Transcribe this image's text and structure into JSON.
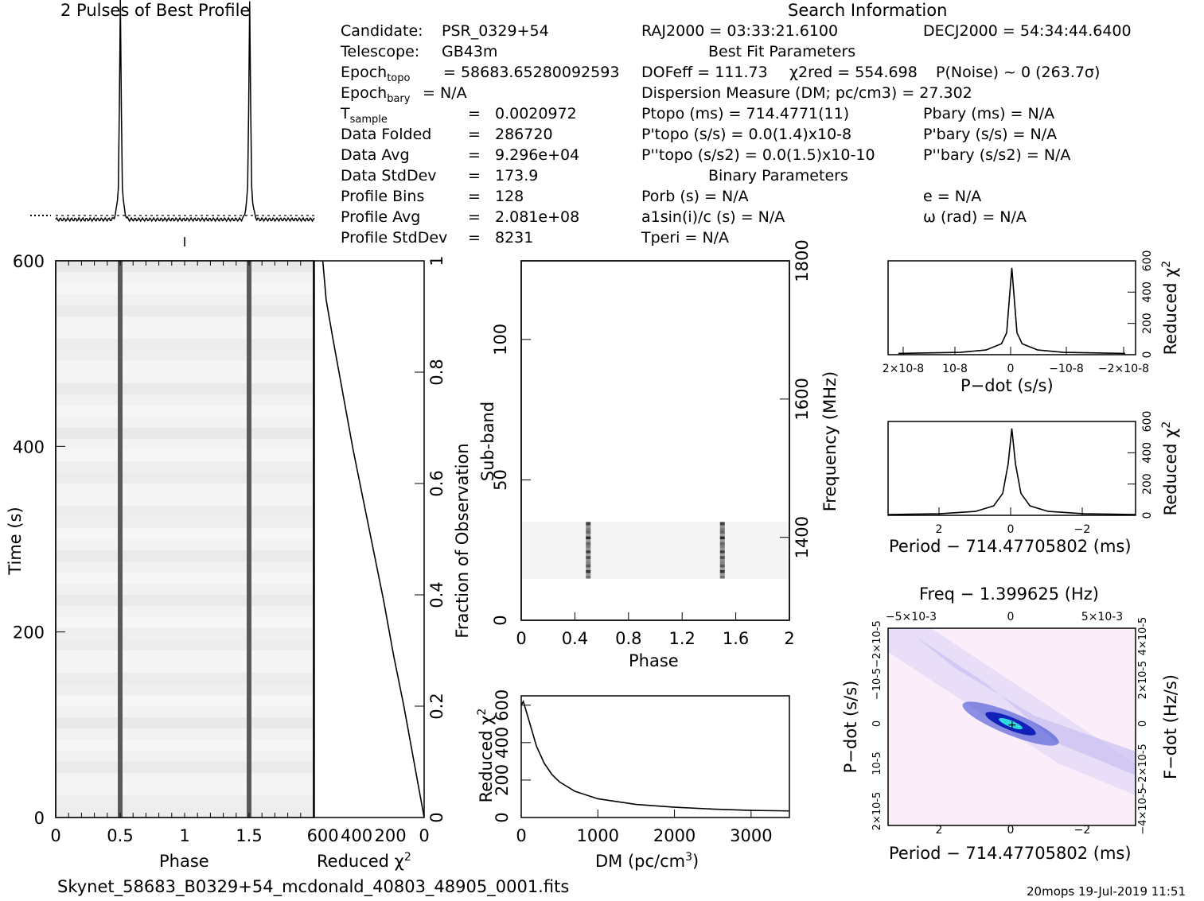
{
  "header": {
    "profile_title": "2 Pulses of Best Profile",
    "search_title": "Search Information",
    "best_fit_title": "Best Fit Parameters",
    "binary_title": "Binary Parameters"
  },
  "info_left": [
    {
      "label": "Candidate:",
      "value": "PSR_0329+54"
    },
    {
      "label": "Telescope:",
      "value": "GB43m"
    },
    {
      "label": "Epoch",
      "sub": "topo",
      "value": "= 58683.65280092593"
    },
    {
      "label": "Epoch",
      "sub": "bary",
      "value": "= N/A"
    },
    {
      "label": "T",
      "sub": "sample",
      "value": "0.0020972"
    },
    {
      "label": "Data Folded",
      "value": "286720"
    },
    {
      "label": "Data Avg",
      "value": "9.296e+04"
    },
    {
      "label": "Data StdDev",
      "value": "173.9"
    },
    {
      "label": "Profile Bins",
      "value": "128"
    },
    {
      "label": "Profile Avg",
      "value": "2.081e+08"
    },
    {
      "label": "Profile StdDev",
      "value": "8231"
    }
  ],
  "search": {
    "ra": "RAJ2000 = 03:33:21.6100",
    "dec": "DECJ2000 = 54:34:44.6400",
    "dof": "DOFeff = 111.73",
    "chi2": "χ2red = 554.698",
    "pnoise": "P(Noise) ~ 0   (263.7σ)",
    "dm": "Dispersion Measure (DM; pc/cm3) = 27.302",
    "ptopo": "Ptopo (ms) =  714.4771(11)",
    "pbary": "Pbary (ms) = N/A",
    "pdot_topo": "P'topo (s/s) = 0.0(1.4)x10-8",
    "pdot_bary": "P'bary (s/s) = N/A",
    "pddot_topo": "P''topo (s/s2) = 0.0(1.5)x10-10",
    "pddot_bary": "P''bary (s/s2) = N/A",
    "porb": "Porb (s) = N/A",
    "e": "e = N/A",
    "a1sini": "a1sin(i)/c (s) = N/A",
    "omega": "ω (rad) = N/A",
    "tperi": "Tperi = N/A"
  },
  "footer": {
    "filename": "Skynet_58683_B0329+54_mcdonald_40803_48905_0001.fits",
    "stamp": "20mops 19-Jul-2019 11:51"
  },
  "chart_data": [
    {
      "id": "best-profile",
      "type": "line",
      "title": "2 Pulses of Best Profile",
      "x": "phase 0-2",
      "peaks_at_phase": [
        0.5,
        1.5
      ]
    },
    {
      "id": "time-phase",
      "type": "heatmap",
      "xlabel": "Phase",
      "ylabel": "Time (s)",
      "xlim": [
        0,
        2
      ],
      "ylim": [
        0,
        600
      ],
      "xticks": [
        "0",
        "0.5",
        "1",
        "1.5"
      ],
      "yticks": [
        "0",
        "200",
        "400",
        "600"
      ],
      "pulse_phases": [
        0.5,
        1.5
      ]
    },
    {
      "id": "reduced-chi2-vs-time",
      "type": "line",
      "xlabel": "Reduced χ2",
      "ylabel": "Fraction of Observation",
      "xticks": [
        "600",
        "400",
        "200",
        "0"
      ],
      "yticks": [
        "0",
        "0.2",
        "0.4",
        "0.6",
        "0.8",
        "1"
      ],
      "x": [
        0,
        60,
        120,
        180,
        240,
        300,
        360,
        420,
        480,
        540,
        580,
        600
      ],
      "y": [
        0,
        0.1,
        0.2,
        0.29,
        0.39,
        0.48,
        0.57,
        0.66,
        0.76,
        0.86,
        0.93,
        1.0
      ]
    },
    {
      "id": "subband-phase",
      "type": "heatmap",
      "xlabel": "Phase",
      "ylabel": "Sub-band",
      "y2label": "Frequency (MHz)",
      "xlim": [
        0,
        2
      ],
      "ylim": [
        0,
        128
      ],
      "xticks": [
        "0",
        "0.4",
        "0.8",
        "1.2",
        "1.6",
        "2"
      ],
      "yticks": [
        "0",
        "50",
        "100"
      ],
      "y2ticks": [
        "1400",
        "1600",
        "1800"
      ],
      "signal_subbands": [
        15,
        35
      ],
      "pulse_phases": [
        0.5,
        1.5
      ]
    },
    {
      "id": "dm-chi2",
      "type": "line",
      "xlabel": "DM (pc/cm3)",
      "ylabel": "Reduced χ2",
      "xlim": [
        0,
        3500
      ],
      "ylim": [
        0,
        650
      ],
      "xticks": [
        "0",
        "1000",
        "2000",
        "3000"
      ],
      "yticks": [
        "0",
        "200",
        "400",
        "600"
      ],
      "x": [
        0,
        27,
        100,
        200,
        300,
        400,
        500,
        700,
        1000,
        1500,
        2000,
        2500,
        3000,
        3500
      ],
      "y": [
        600,
        620,
        520,
        380,
        290,
        230,
        190,
        140,
        100,
        70,
        55,
        45,
        38,
        35
      ]
    },
    {
      "id": "pdot-chi2",
      "type": "line",
      "xlabel": "P-dot (s/s)",
      "ylabel": "Reduced χ2",
      "xticks": [
        "2×10-8",
        "10-8",
        "0",
        "−10-8",
        "−2×10-8"
      ],
      "yticks": [
        "0",
        "200",
        "400",
        "600"
      ],
      "x": [
        2.2e-08,
        1e-08,
        5e-09,
        2e-09,
        1e-09,
        0,
        -1e-09,
        -2e-09,
        -5e-09,
        -1e-08,
        -2.2e-08
      ],
      "y": [
        8,
        15,
        30,
        70,
        140,
        555,
        140,
        70,
        30,
        15,
        8
      ]
    },
    {
      "id": "period-chi2",
      "type": "line",
      "xlabel": "Period − 714.47705802 (ms)",
      "ylabel": "Reduced χ2",
      "xticks": [
        "2",
        "0",
        "−2"
      ],
      "yticks": [
        "0",
        "200",
        "400",
        "600"
      ],
      "x": [
        3.4,
        2,
        1,
        0.5,
        0.25,
        0.1,
        0,
        -0.1,
        -0.25,
        -0.5,
        -1,
        -2,
        -3.4
      ],
      "y": [
        5,
        10,
        25,
        60,
        140,
        330,
        555,
        330,
        140,
        60,
        25,
        10,
        5
      ]
    },
    {
      "id": "period-pdot",
      "type": "heatmap",
      "title": "Freq − 1.399625 (Hz)",
      "xlabel": "Period − 714.47705802 (ms)",
      "ylabel": "P-dot (s/s)",
      "y2label": "F-dot (Hz/s)",
      "xticks": [
        "2",
        "0",
        "−2"
      ],
      "x2ticks": [
        "−5×10-3",
        "0",
        "5×10-3"
      ],
      "yticks": [
        "2×10-5",
        "10-5",
        "0",
        "−10-5",
        "−2×10-5"
      ],
      "y2ticks": [
        "−4×10-5",
        "−2×10-5",
        "0",
        "2×10-5",
        "4×10-5"
      ]
    }
  ]
}
